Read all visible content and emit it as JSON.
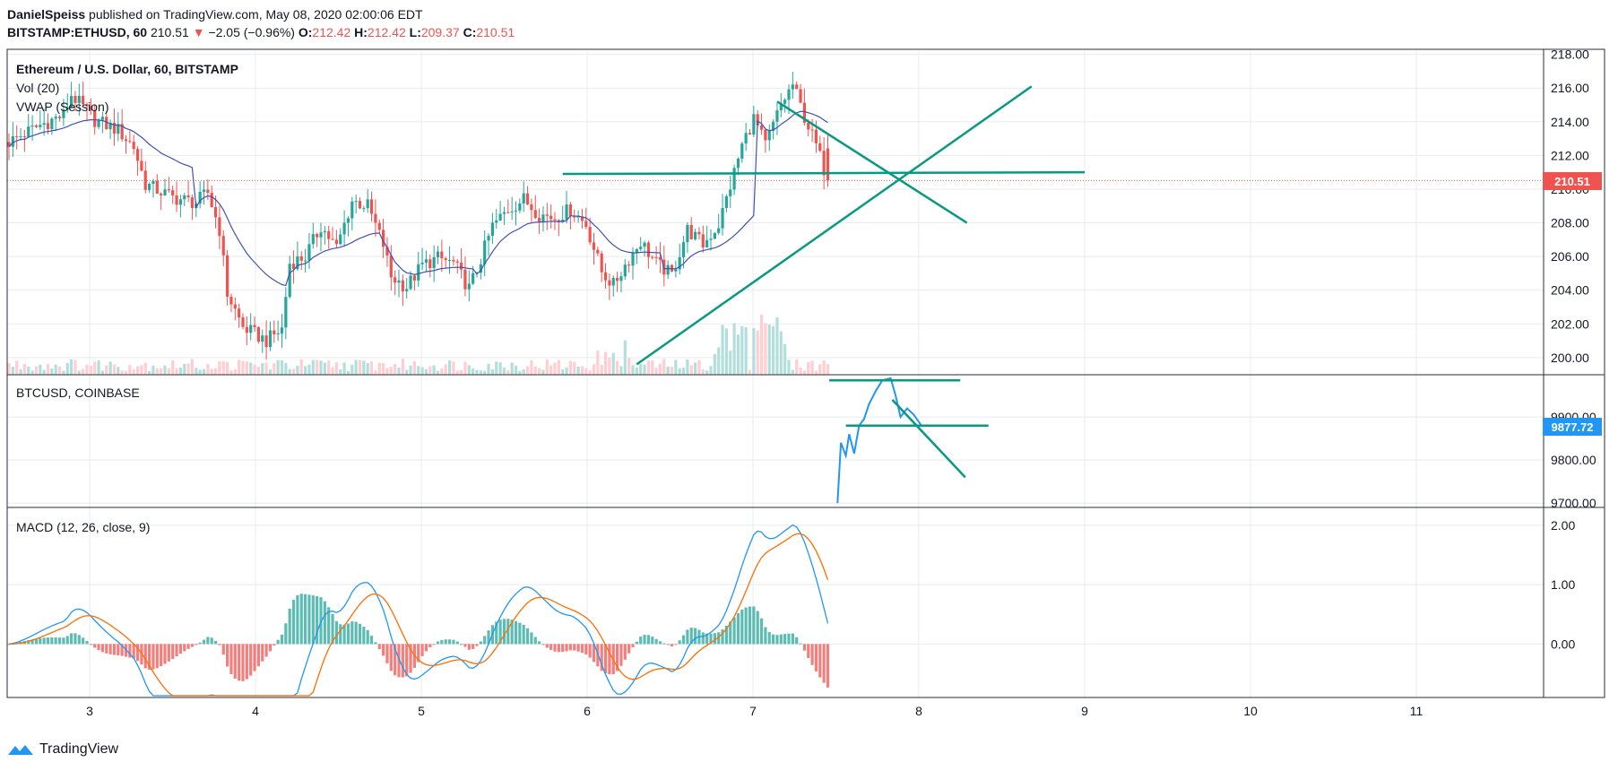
{
  "header": {
    "author": "DanielSpeiss",
    "published": "published on TradingView.com, May 08, 2020 02:00:06 EDT",
    "symbol": "BITSTAMP:ETHUSD, 60",
    "last": "210.51",
    "change_arrow": "▼",
    "change": "−2.05 (−0.96%)",
    "o_label": "O:",
    "o": "212.42",
    "h_label": "H:",
    "h": "212.42",
    "l_label": "L:",
    "l": "209.37",
    "c_label": "C:",
    "c": "210.51"
  },
  "panes": {
    "main_title": "Ethereum / U.S. Dollar, 60, BITSTAMP",
    "vol_label": "Vol (20)",
    "vwap_label": "VWAP (Session)",
    "btc_title": "BTCUSD, COINBASE",
    "macd_title": "MACD (12, 26, close, 9)"
  },
  "price_badges": {
    "eth": "210.51",
    "btc": "9877.72"
  },
  "footer": {
    "brand": "TradingView"
  },
  "colors": {
    "up": "#26a69a",
    "down": "#ef5350",
    "up_light": "#b2dfdb",
    "down_light": "#ffcdd2",
    "vwap": "#3f51b5",
    "btc_line": "#2196f3",
    "macd_line": "#2196f3",
    "signal_line": "#ff6d00",
    "drawing": "#089981",
    "grid": "#e8ebee"
  },
  "chart_data": [
    {
      "type": "candlestick",
      "title": "Ethereum / U.S. Dollar, 60, BITSTAMP",
      "x_ticks": [
        "3",
        "4",
        "5",
        "6",
        "7",
        "8",
        "9",
        "10",
        "11"
      ],
      "y_ticks": [
        "200.00",
        "202.00",
        "204.00",
        "206.00",
        "208.00",
        "210.00",
        "212.00",
        "214.00",
        "216.00",
        "218.00"
      ],
      "ylim": [
        199.3,
        218.3
      ],
      "last_price": 210.51,
      "close_path_points": [
        [
          0,
          212.8
        ],
        [
          8,
          213.8
        ],
        [
          14,
          214.4
        ],
        [
          16,
          215.6
        ],
        [
          22,
          214.1
        ],
        [
          28,
          213.5
        ],
        [
          32,
          212.5
        ],
        [
          35,
          210.3
        ],
        [
          42,
          209.5
        ],
        [
          48,
          209.2
        ],
        [
          51,
          209.8
        ],
        [
          54,
          207.6
        ],
        [
          56,
          203.8
        ],
        [
          60,
          201.8
        ],
        [
          66,
          201.0
        ],
        [
          70,
          201.7
        ],
        [
          72,
          205.6
        ],
        [
          76,
          206.0
        ],
        [
          80,
          207.8
        ],
        [
          84,
          206.5
        ],
        [
          88,
          209.3
        ],
        [
          92,
          209.0
        ],
        [
          96,
          206.7
        ],
        [
          98,
          204.8
        ],
        [
          102,
          204.2
        ],
        [
          106,
          205.5
        ],
        [
          110,
          205.9
        ],
        [
          114,
          205.6
        ],
        [
          118,
          204.1
        ],
        [
          120,
          205.2
        ],
        [
          124,
          207.8
        ],
        [
          128,
          208.8
        ],
        [
          132,
          209.4
        ],
        [
          136,
          208.5
        ],
        [
          140,
          208.3
        ],
        [
          144,
          208.8
        ],
        [
          148,
          207.9
        ],
        [
          152,
          205.1
        ],
        [
          155,
          204.3
        ],
        [
          158,
          205.5
        ],
        [
          162,
          206.9
        ],
        [
          166,
          205.6
        ],
        [
          170,
          204.9
        ],
        [
          174,
          207.6
        ],
        [
          178,
          206.7
        ],
        [
          182,
          207.9
        ],
        [
          185,
          210.2
        ],
        [
          188,
          212.6
        ],
        [
          191,
          214.2
        ],
        [
          194,
          212.6
        ],
        [
          198,
          215.0
        ],
        [
          201,
          216.2
        ],
        [
          204,
          214.3
        ],
        [
          207,
          212.6
        ],
        [
          210,
          210.51
        ]
      ],
      "volume_note": "Vol (20) histogram shown at bottom of pane",
      "drawings": "trendlines"
    },
    {
      "type": "line",
      "title": "BTCUSD, COINBASE",
      "y_ticks": [
        "9700.00",
        "9800.00",
        "9900.00"
      ],
      "ylim": [
        9690,
        9998
      ],
      "last_price": 9877.72,
      "x_range_days": [
        7.5,
        8.05
      ],
      "points": [
        [
          7.51,
          9700
        ],
        [
          7.53,
          9840
        ],
        [
          7.56,
          9810
        ],
        [
          7.58,
          9860
        ],
        [
          7.61,
          9815
        ],
        [
          7.64,
          9880
        ],
        [
          7.67,
          9895
        ],
        [
          7.7,
          9930
        ],
        [
          7.74,
          9960
        ],
        [
          7.78,
          9985
        ],
        [
          7.83,
          9990
        ],
        [
          7.86,
          9950
        ],
        [
          7.89,
          9900
        ],
        [
          7.93,
          9920
        ],
        [
          7.97,
          9905
        ],
        [
          8.02,
          9877.72
        ]
      ]
    },
    {
      "type": "line",
      "title": "MACD (12, 26, close, 9)",
      "y_ticks": [
        "0.00",
        "1.00",
        "2.00"
      ],
      "ylim": [
        -0.9,
        2.3
      ],
      "series": [
        {
          "name": "MACD",
          "values_note": "blue line"
        },
        {
          "name": "Signal",
          "values_note": "orange line"
        }
      ]
    }
  ]
}
